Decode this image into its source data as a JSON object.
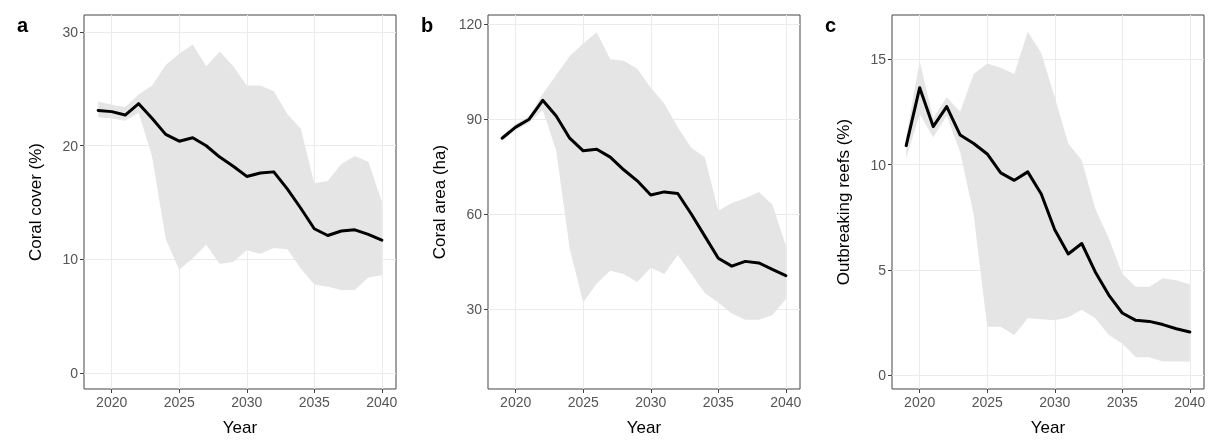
{
  "chart_data": [
    {
      "type": "line",
      "title": "a",
      "xlabel": "Year",
      "ylabel": "Coral cover (%)",
      "x": [
        2019,
        2020,
        2021,
        2022,
        2023,
        2024,
        2025,
        2026,
        2027,
        2028,
        2029,
        2030,
        2031,
        2032,
        2033,
        2034,
        2035,
        2036,
        2037,
        2038,
        2039,
        2040
      ],
      "series": [
        {
          "color": "#000000",
          "values": [
            23.1,
            23.0,
            22.7,
            23.7,
            22.4,
            21.0,
            20.4,
            20.7,
            20.0,
            19.0,
            18.2,
            17.3,
            17.6,
            17.7,
            16.2,
            14.5,
            12.7,
            12.1,
            12.5,
            12.6,
            12.2,
            11.7
          ],
          "lower": [
            22.5,
            22.4,
            22.2,
            22.9,
            19.0,
            11.8,
            9.1,
            10.1,
            11.3,
            9.6,
            9.8,
            10.8,
            10.5,
            11.0,
            10.9,
            9.2,
            7.8,
            7.6,
            7.3,
            7.3,
            8.4,
            8.6
          ],
          "upper": [
            23.9,
            23.6,
            23.4,
            24.5,
            25.3,
            27.1,
            28.1,
            28.9,
            27.0,
            28.3,
            27.0,
            25.3,
            25.3,
            24.8,
            22.8,
            21.5,
            16.7,
            16.9,
            18.4,
            19.1,
            18.6,
            15.1
          ]
        }
      ],
      "xlim": [
        2017.95,
        2041.05
      ],
      "xticks": [
        2020,
        2025,
        2030,
        2035,
        2040
      ],
      "ylim": [
        -1.4,
        31.5
      ],
      "yticks": [
        0,
        10,
        20,
        30
      ],
      "grid": true
    },
    {
      "type": "line",
      "title": "b",
      "xlabel": "Year",
      "ylabel": "Coral area (ha)",
      "x": [
        2019,
        2020,
        2021,
        2022,
        2023,
        2024,
        2025,
        2026,
        2027,
        2028,
        2029,
        2030,
        2031,
        2032,
        2033,
        2034,
        2035,
        2036,
        2037,
        2038,
        2039,
        2040
      ],
      "series": [
        {
          "color": "#000000",
          "values": [
            84,
            87.5,
            90,
            96,
            91,
            84,
            80,
            80.5,
            78,
            74,
            70.5,
            66,
            67,
            66.5,
            60,
            53,
            46,
            43.5,
            45,
            44.5,
            42.5,
            40.5
          ],
          "lower": [
            83,
            86.5,
            89,
            93,
            80,
            49,
            32,
            38,
            42,
            41,
            38.5,
            43,
            41,
            47,
            41,
            35,
            32,
            28.5,
            26.5,
            26.5,
            28,
            33
          ],
          "upper": [
            85,
            88.5,
            91,
            98,
            104,
            110,
            114,
            117.5,
            109,
            108.5,
            106,
            100,
            95,
            87.5,
            81,
            78,
            61,
            63.5,
            65,
            67,
            63,
            50
          ]
        }
      ],
      "xlim": [
        2017.95,
        2041.05
      ],
      "xticks": [
        2020,
        2025,
        2030,
        2035,
        2040
      ],
      "ylim": [
        4.6,
        123
      ],
      "yticks": [
        30,
        60,
        90,
        120
      ],
      "grid": true
    },
    {
      "type": "line",
      "title": "c",
      "xlabel": "Year",
      "ylabel": "Outbreaking reefs (%)",
      "x": [
        2019,
        2020,
        2021,
        2022,
        2023,
        2024,
        2025,
        2026,
        2027,
        2028,
        2029,
        2030,
        2031,
        2032,
        2033,
        2034,
        2035,
        2036,
        2037,
        2038,
        2039,
        2040
      ],
      "series": [
        {
          "color": "#000000",
          "values": [
            10.9,
            13.65,
            11.8,
            12.75,
            11.4,
            11.0,
            10.5,
            9.6,
            9.25,
            9.65,
            8.6,
            6.9,
            5.75,
            6.25,
            4.9,
            3.8,
            2.95,
            2.6,
            2.55,
            2.4,
            2.2,
            2.05
          ],
          "lower": [
            10.3,
            12.4,
            11.3,
            12.3,
            10.6,
            7.6,
            2.3,
            2.3,
            1.9,
            2.7,
            2.65,
            2.6,
            2.75,
            3.1,
            2.7,
            1.9,
            1.5,
            0.85,
            0.85,
            0.65,
            0.65,
            0.65
          ],
          "upper": [
            11.3,
            14.9,
            12.2,
            13.2,
            12.5,
            14.3,
            14.8,
            14.6,
            14.3,
            16.3,
            15.3,
            13.2,
            11.0,
            10.2,
            7.9,
            6.5,
            4.8,
            4.2,
            4.2,
            4.6,
            4.5,
            4.3
          ]
        }
      ],
      "xlim": [
        2017.95,
        2041.05
      ],
      "xticks": [
        2020,
        2025,
        2030,
        2035,
        2040
      ],
      "ylim": [
        -0.66,
        17.1
      ],
      "yticks": [
        0,
        5,
        10,
        15
      ],
      "grid": true
    }
  ]
}
